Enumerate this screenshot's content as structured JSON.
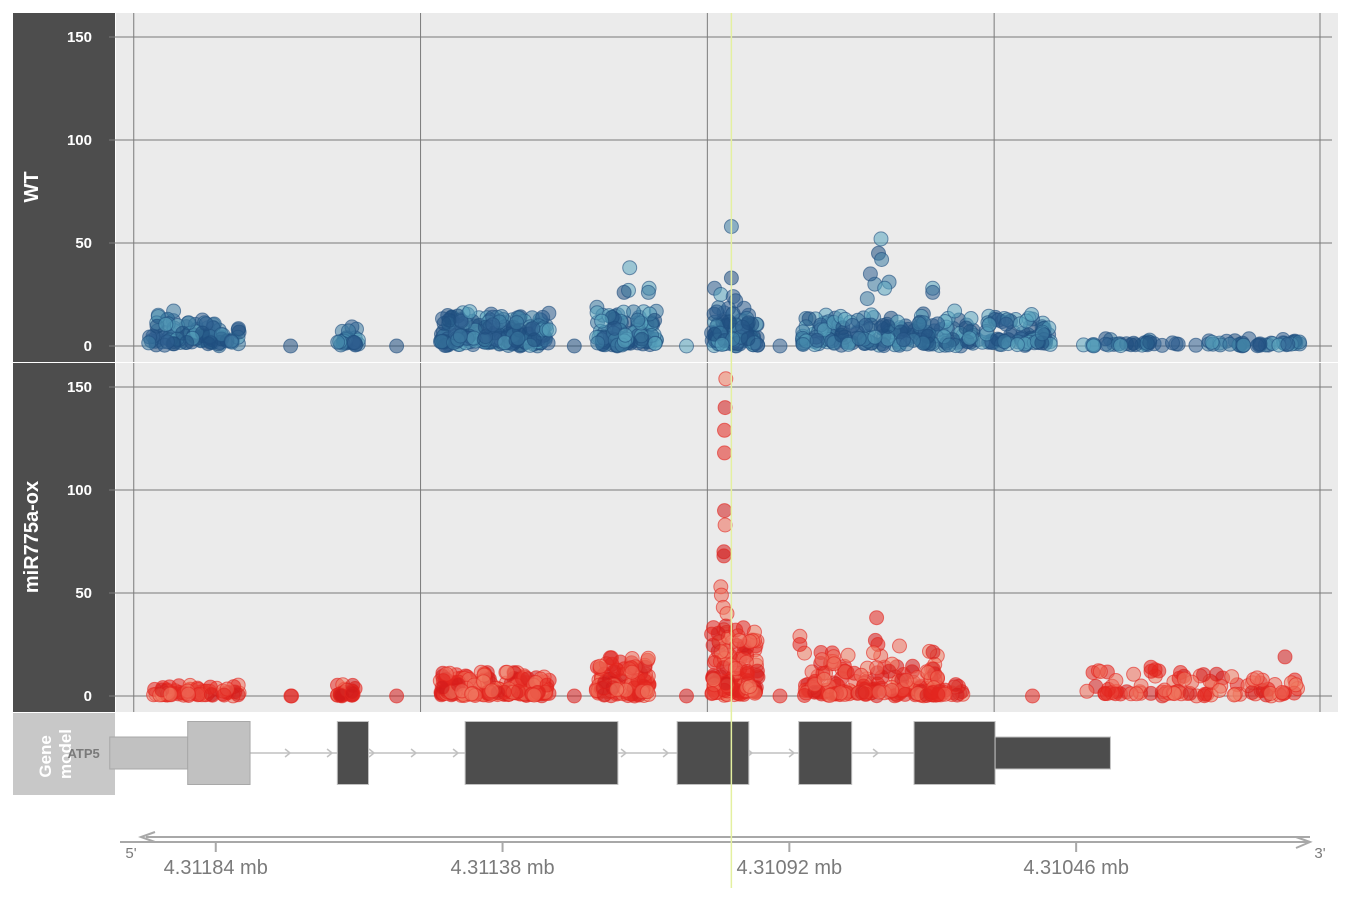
{
  "chart_data": {
    "type": "scatter",
    "panels": [
      {
        "label": "WT",
        "ylim": [
          0,
          160
        ],
        "yticks": [
          "0",
          "50",
          "100",
          "150"
        ],
        "colors": [
          "#1f4e7f",
          "#3d7ba3",
          "#5aa6bf",
          "#2f5e8f"
        ],
        "series": [
          {
            "x": [
              4.31195,
              4.3118
            ],
            "y_base": 4,
            "y_spread": 14,
            "n": 100
          },
          {
            "x": [
              4.31172,
              4.31172
            ],
            "y_base": 0,
            "y_spread": 0,
            "n": 1
          },
          {
            "x": [
              4.311645,
              4.31161
            ],
            "y_base": 3,
            "y_spread": 9,
            "n": 25
          },
          {
            "x": [
              4.31155,
              4.31155
            ],
            "y_base": 0,
            "y_spread": 0,
            "n": 1
          },
          {
            "x": [
              4.31148,
              4.311305
            ],
            "y_base": 4,
            "y_spread": 14,
            "n": 220
          },
          {
            "x": [
              4.311265,
              4.311265
            ],
            "y_base": 0,
            "y_spread": 0,
            "n": 1
          },
          {
            "x": [
              4.31123,
              4.31113
            ],
            "y_base": 4,
            "y_spread": 16,
            "n": 110
          },
          {
            "x": [
              4.311085,
              4.311085
            ],
            "y_base": 0,
            "y_spread": 0,
            "n": 1
          },
          {
            "x": [
              4.311045,
              4.31097
            ],
            "y_base": 4,
            "y_spread": 16,
            "n": 110
          },
          {
            "x": [
              4.310935,
              4.310935
            ],
            "y_base": 0,
            "y_spread": 0,
            "n": 1
          },
          {
            "x": [
              4.3109,
              4.3105
            ],
            "y_base": 3,
            "y_spread": 14,
            "n": 260
          },
          {
            "x": [
              4.31045,
              4.3101
            ],
            "y_base": 1,
            "y_spread": 3,
            "n": 70
          }
        ],
        "peaks": [
          {
            "x": 4.311176,
            "y": 38
          },
          {
            "x": 4.311178,
            "y": 27
          },
          {
            "x": 4.311185,
            "y": 26
          },
          {
            "x": 4.311145,
            "y": 28
          },
          {
            "x": 4.311146,
            "y": 26
          },
          {
            "x": 4.31104,
            "y": 28
          },
          {
            "x": 4.31103,
            "y": 25
          },
          {
            "x": 4.311013,
            "y": 58
          },
          {
            "x": 4.311013,
            "y": 33
          },
          {
            "x": 4.31101,
            "y": 24
          },
          {
            "x": 4.311006,
            "y": 22
          },
          {
            "x": 4.310773,
            "y": 52
          },
          {
            "x": 4.310777,
            "y": 45
          },
          {
            "x": 4.310772,
            "y": 42
          },
          {
            "x": 4.310783,
            "y": 30
          },
          {
            "x": 4.31079,
            "y": 35
          },
          {
            "x": 4.31076,
            "y": 31
          },
          {
            "x": 4.310767,
            "y": 28
          },
          {
            "x": 4.310795,
            "y": 23
          },
          {
            "x": 4.31069,
            "y": 28
          },
          {
            "x": 4.31069,
            "y": 26
          },
          {
            "x": 4.310655,
            "y": 17
          }
        ]
      },
      {
        "label": "miR775a-ox",
        "ylim": [
          0,
          160
        ],
        "yticks": [
          "0",
          "50",
          "100",
          "150"
        ],
        "colors": [
          "#e3271f",
          "#ef6b5a",
          "#d11a1a",
          "#f07c63"
        ],
        "series": [
          {
            "x": [
              4.311945,
              4.3118
            ],
            "y_base": 1,
            "y_spread": 5,
            "n": 60
          },
          {
            "x": [
              4.311722,
              4.311718
            ],
            "y_base": 0,
            "y_spread": 0,
            "n": 2
          },
          {
            "x": [
              4.311645,
              4.311615
            ],
            "y_base": 1,
            "y_spread": 5,
            "n": 25
          },
          {
            "x": [
              4.31155,
              4.31155
            ],
            "y_base": 0,
            "y_spread": 0,
            "n": 1
          },
          {
            "x": [
              4.31148,
              4.311305
            ],
            "y_base": 2,
            "y_spread": 11,
            "n": 220
          },
          {
            "x": [
              4.311265,
              4.311265
            ],
            "y_base": 0,
            "y_spread": 0,
            "n": 1
          },
          {
            "x": [
              4.31123,
              4.311145
            ],
            "y_base": 4,
            "y_spread": 17,
            "n": 130
          },
          {
            "x": [
              4.311085,
              4.311085
            ],
            "y_base": 0,
            "y_spread": 0,
            "n": 1
          },
          {
            "x": [
              4.311045,
              4.31097
            ],
            "y_base": 5,
            "y_spread": 30,
            "n": 150
          },
          {
            "x": [
              4.310935,
              4.310935
            ],
            "y_base": 0,
            "y_spread": 0,
            "n": 1
          },
          {
            "x": [
              4.3109,
              4.31068
            ],
            "y_base": 3,
            "y_spread": 22,
            "n": 170
          },
          {
            "x": [
              4.3107,
              4.31064
            ],
            "y_base": 1,
            "y_spread": 5,
            "n": 25
          },
          {
            "x": [
              4.31053,
              4.31053
            ],
            "y_base": 0,
            "y_spread": 0,
            "n": 1
          },
          {
            "x": [
              4.31045,
              4.3101
            ],
            "y_base": 2,
            "y_spread": 12,
            "n": 90
          }
        ],
        "peaks": [
          {
            "x": 4.311022,
            "y": 154
          },
          {
            "x": 4.311023,
            "y": 140
          },
          {
            "x": 4.311024,
            "y": 129
          },
          {
            "x": 4.311024,
            "y": 118
          },
          {
            "x": 4.311024,
            "y": 90
          },
          {
            "x": 4.311023,
            "y": 83
          },
          {
            "x": 4.311025,
            "y": 70
          },
          {
            "x": 4.311025,
            "y": 68
          },
          {
            "x": 4.31103,
            "y": 53
          },
          {
            "x": 4.311029,
            "y": 49
          },
          {
            "x": 4.311026,
            "y": 43
          },
          {
            "x": 4.31102,
            "y": 40
          },
          {
            "x": 4.311022,
            "y": 34
          },
          {
            "x": 4.311006,
            "y": 32
          },
          {
            "x": 4.311,
            "y": 27
          },
          {
            "x": 4.31078,
            "y": 38
          },
          {
            "x": 4.310782,
            "y": 27
          },
          {
            "x": 4.310778,
            "y": 25
          },
          {
            "x": 4.310785,
            "y": 21
          },
          {
            "x": 4.310903,
            "y": 29
          },
          {
            "x": 4.310903,
            "y": 25
          },
          {
            "x": 4.31034,
            "y": 14
          },
          {
            "x": 4.31034,
            "y": 12
          },
          {
            "x": 4.310125,
            "y": 19
          }
        ]
      }
    ],
    "xlim": [
      4.312,
      4.31004
    ],
    "x_ticks": [
      4.31184,
      4.31138,
      4.31092,
      4.31046
    ],
    "x_tick_labels": [
      "4.31184 mb",
      "4.31138 mb",
      "4.31092 mb",
      "4.31046 mb"
    ],
    "x_axis_end_labels": {
      "left": "5'",
      "right": "3'"
    },
    "highlight_x": 4.311013,
    "highlight_color": "#e4f0a0",
    "gene_model": {
      "strip_label": "Gene model",
      "gene_name": "ATP5",
      "utr_color": "#c1c1c1",
      "exon_color": "#4d4d4d",
      "parts": [
        {
          "kind": "utr5",
          "start": 4.31201,
          "end": 4.311885,
          "cds_from": 4.311885,
          "cds_to": 4.311785
        },
        {
          "kind": "exon",
          "start": 4.311645,
          "end": 4.311595
        },
        {
          "kind": "exon",
          "start": 4.31144,
          "end": 4.311195
        },
        {
          "kind": "exon",
          "start": 4.3111,
          "end": 4.310985
        },
        {
          "kind": "exon",
          "start": 4.310905,
          "end": 4.31082
        },
        {
          "kind": "utr3",
          "start": 4.31072,
          "end": 4.310405,
          "cds_from": 4.31072,
          "cds_to": 4.31059
        }
      ]
    }
  }
}
